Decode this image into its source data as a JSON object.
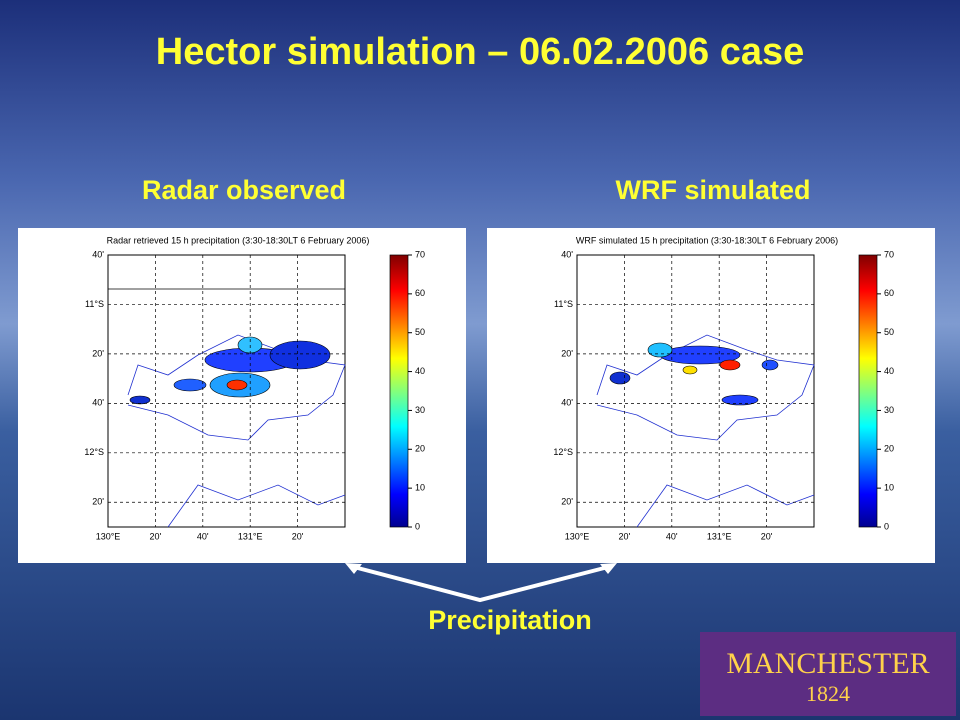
{
  "title": "Hector simulation – 06.02.2006 case",
  "panels": [
    {
      "heading": "Radar observed",
      "plot_title": "Radar retrieved 15 h precipitation (3:30-18:30LT 6 February 2006)"
    },
    {
      "heading": "WRF simulated",
      "plot_title": "WRF simulated 15 h precipitation (3:30-18:30LT 6 February 2006)"
    }
  ],
  "y_labels": [
    "40'",
    "11°S",
    "20'",
    "40'",
    "12°S",
    "20'"
  ],
  "x_labels": [
    "130°E",
    "20'",
    "40'",
    "131°E",
    "20'"
  ],
  "colorbar_ticks": [
    0,
    10,
    20,
    30,
    40,
    50,
    60,
    70
  ],
  "annotation": "Precipitation",
  "logo": {
    "name": "MANCHESTER",
    "year": "1824"
  }
}
